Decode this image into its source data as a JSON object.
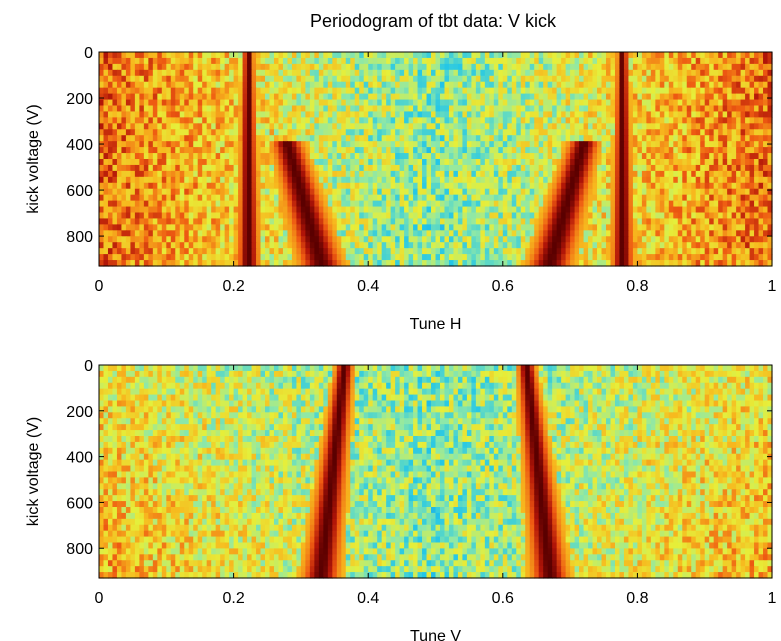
{
  "figure": {
    "title": "Periodogram of tbt data: V kick"
  },
  "colormap": [
    "#1f2cd8",
    "#22c6e8",
    "#8ee8a8",
    "#e6ef3a",
    "#f7b91e",
    "#ee5a12",
    "#b01408",
    "#5a0000"
  ],
  "chart_data": [
    {
      "type": "heatmap",
      "title": "Periodogram of tbt data: V kick",
      "xlabel": "Tune H",
      "ylabel": "kick voltage (V)",
      "xlim": [
        0,
        1
      ],
      "ylim": [
        0,
        930
      ],
      "y_reversed": true,
      "xticks": [
        0,
        0.2,
        0.4,
        0.6,
        0.8,
        1
      ],
      "xtick_labels": [
        "0",
        "0.2",
        "0.4",
        "0.6",
        "0.8",
        "1"
      ],
      "yticks": [
        0,
        200,
        400,
        600,
        800
      ],
      "ytick_labels": [
        "0",
        "200",
        "400",
        "600",
        "800"
      ],
      "colormap": "jet",
      "grid": false,
      "ridges": [
        {
          "tune_at_0V": 0.222,
          "tune_at_920V": 0.222,
          "width": 0.006
        },
        {
          "tune_at_0V": 0.778,
          "tune_at_920V": 0.778,
          "width": 0.006
        },
        {
          "tune_at_400V": 0.28,
          "tune_at_920V": 0.33,
          "width": 0.012
        },
        {
          "tune_at_400V": 0.72,
          "tune_at_920V": 0.67,
          "width": 0.012
        }
      ]
    },
    {
      "type": "heatmap",
      "xlabel": "Tune V",
      "ylabel": "kick voltage (V)",
      "xlim": [
        0,
        1
      ],
      "ylim": [
        0,
        930
      ],
      "y_reversed": true,
      "xticks": [
        0,
        0.2,
        0.4,
        0.6,
        0.8,
        1
      ],
      "xtick_labels": [
        "0",
        "0.2",
        "0.4",
        "0.6",
        "0.8",
        "1"
      ],
      "yticks": [
        0,
        200,
        400,
        600,
        800
      ],
      "ytick_labels": [
        "0",
        "200",
        "400",
        "600",
        "800"
      ],
      "colormap": "jet",
      "grid": false,
      "ridges": [
        {
          "tune_at_0V": 0.365,
          "tune_at_920V": 0.33,
          "width": 0.01
        },
        {
          "tune_at_0V": 0.635,
          "tune_at_920V": 0.67,
          "width": 0.01
        }
      ]
    }
  ]
}
